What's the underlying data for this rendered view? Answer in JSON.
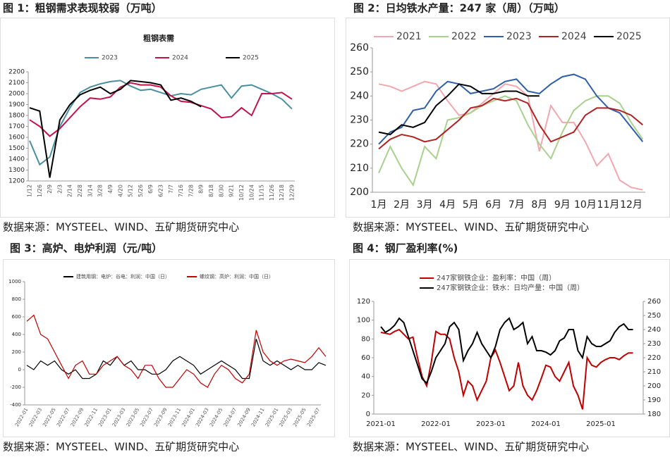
{
  "chart_data": [
    {
      "type": "line",
      "figure_title": "图 1：粗钢需求表现较弱（万吨）",
      "title": "粗钢表需",
      "source": "数据来源：MYSTEEL、WIND、五矿期货研究中心",
      "categories": [
        "1/12",
        "1/26",
        "2/9",
        "2/3",
        "2/14",
        "2/28",
        "3/14",
        "3/28",
        "4/9",
        "4/20",
        "5/12",
        "5/26",
        "6/9",
        "6/23",
        "7/7",
        "7/16",
        "7/28",
        "8/9",
        "8/18",
        "8/30",
        "9/21",
        "10/12",
        "10/24",
        "11/15",
        "11/26",
        "12/18",
        "12/29"
      ],
      "ylim": [
        1200,
        2200
      ],
      "yticks": [
        1200,
        1300,
        1400,
        1500,
        1600,
        1700,
        1800,
        1900,
        2000,
        2100,
        2200
      ],
      "series": [
        {
          "name": "2023",
          "color": "#4a8fa0",
          "values": [
            1570,
            1350,
            1420,
            1700,
            1870,
            2010,
            2060,
            2090,
            2110,
            2120,
            2070,
            2030,
            2040,
            2010,
            1980,
            2000,
            1990,
            2040,
            2060,
            2080,
            1960,
            2070,
            2080,
            2040,
            2000,
            1950,
            1860
          ]
        },
        {
          "name": "2024",
          "color": "#c0144c",
          "values": [
            1760,
            1700,
            1610,
            1680,
            1780,
            1880,
            1960,
            1950,
            1970,
            2060,
            2100,
            2080,
            2080,
            2060,
            1980,
            1930,
            1920,
            1890,
            1860,
            1780,
            1790,
            1870,
            1800,
            2000,
            2000,
            2010,
            1950
          ]
        },
        {
          "name": "2025",
          "color": "#000000",
          "values": [
            1870,
            1840,
            1230,
            1760,
            1900,
            1990,
            2030,
            2060,
            2000,
            2040,
            2120,
            2110,
            2100,
            2080,
            1940,
            1960,
            1930,
            1880,
            null,
            null,
            null,
            null,
            null,
            null,
            null,
            null,
            null
          ]
        }
      ]
    },
    {
      "type": "line",
      "figure_title": "图 2：日均铁水产量：247 家（周）（万吨）",
      "source": "数据来源：MYSTEEL、WIND、五矿期货研究中心",
      "categories": [
        "1月",
        null,
        "2月",
        null,
        "3月",
        null,
        "4月",
        null,
        "5月",
        null,
        "6月",
        null,
        "7月",
        null,
        "8月",
        null,
        "9月",
        null,
        "10月",
        null,
        "11月",
        null,
        "12月",
        null
      ],
      "ylim": [
        200,
        260
      ],
      "yticks": [
        200,
        210,
        220,
        230,
        240,
        250,
        260
      ],
      "series": [
        {
          "name": "2021",
          "color": "#f4a6b0",
          "values": [
            245,
            244,
            242,
            244,
            246,
            245,
            238,
            232,
            233,
            237,
            241,
            245,
            244,
            240,
            217,
            236,
            229,
            229,
            221,
            211,
            216,
            205,
            202,
            201
          ]
        },
        {
          "name": "2022",
          "color": "#a9d18e",
          "values": [
            208,
            219,
            210,
            203,
            219,
            214,
            230,
            231,
            233,
            236,
            238,
            240,
            238,
            228,
            220,
            214,
            225,
            234,
            238,
            240,
            240,
            237,
            229,
            222
          ]
        },
        {
          "name": "2023",
          "color": "#2e5fa8",
          "values": [
            220,
            225,
            227,
            234,
            235,
            242,
            246,
            245,
            241,
            242,
            243,
            246,
            247,
            242,
            241,
            245,
            248,
            249,
            247,
            240,
            235,
            233,
            227,
            221
          ]
        },
        {
          "name": "2024",
          "color": "#b22222",
          "values": [
            218,
            222,
            224,
            223,
            221,
            222,
            226,
            230,
            235,
            236,
            239,
            238,
            239,
            237,
            228,
            221,
            223,
            225,
            232,
            235,
            235,
            234,
            232,
            228
          ]
        },
        {
          "name": "2025",
          "color": "#000000",
          "values": [
            225,
            224,
            228,
            227,
            229,
            236,
            240,
            245,
            244,
            241,
            241,
            242,
            242,
            240,
            240,
            null,
            null,
            null,
            null,
            null,
            null,
            null,
            null,
            null
          ]
        }
      ]
    },
    {
      "type": "line",
      "figure_title": "图 3：高炉、电炉利润（元/吨）",
      "source": "数据来源：MYSTEEL、WIND、五矿期货研究中心",
      "categories": [
        "2022-01",
        null,
        "2022-03",
        null,
        "2022-05",
        null,
        "2022-07",
        null,
        "2022-09",
        null,
        "2022-11",
        null,
        "2023-01",
        null,
        "2023-03",
        null,
        "2023-05",
        null,
        "2023-07",
        null,
        "2023-09",
        null,
        "2023-11",
        null,
        "2024-01",
        null,
        "2024-03",
        null,
        "2024-05",
        null,
        "2024-07",
        null,
        "2024-09",
        null,
        "2024-11",
        null,
        "2025-01",
        null,
        "2025-03",
        null,
        "2025-05",
        null,
        "2025-07",
        null
      ],
      "ylim": [
        -400,
        1000
      ],
      "yticks": [
        -400,
        -200,
        0,
        200,
        400,
        600,
        800,
        1000
      ],
      "series": [
        {
          "name": "建筑用钢：电炉：谷电：利润：中国（日）",
          "color": "#000000",
          "values": [
            50,
            0,
            100,
            50,
            100,
            0,
            -50,
            0,
            -100,
            -100,
            -50,
            100,
            50,
            150,
            50,
            100,
            0,
            0,
            -50,
            -50,
            0,
            100,
            150,
            100,
            50,
            -50,
            0,
            50,
            100,
            50,
            0,
            -100,
            -100,
            350,
            100,
            50,
            100,
            50,
            0,
            50,
            0,
            0,
            80,
            50
          ]
        },
        {
          "name": "螺纹钢：高炉：利润：中国（日）",
          "color": "#c00000",
          "values": [
            550,
            620,
            400,
            350,
            200,
            50,
            -100,
            50,
            100,
            -50,
            -50,
            50,
            100,
            150,
            50,
            0,
            -100,
            50,
            50,
            -100,
            -200,
            -200,
            -100,
            0,
            -50,
            -150,
            -200,
            -50,
            50,
            0,
            -100,
            -150,
            -50,
            450,
            200,
            100,
            50,
            100,
            120,
            100,
            80,
            150,
            250,
            150
          ]
        }
      ]
    },
    {
      "type": "line",
      "figure_title": "图 4：钢厂盈利率(%)",
      "source": "数据来源：MYSTEEL、WIND、五矿期货研究中心",
      "categories": [
        "2021-01",
        null,
        null,
        null,
        null,
        null,
        null,
        null,
        null,
        null,
        null,
        null,
        "2022-01",
        null,
        null,
        null,
        null,
        null,
        null,
        null,
        null,
        null,
        null,
        null,
        "2023-01",
        null,
        null,
        null,
        null,
        null,
        null,
        null,
        null,
        null,
        null,
        null,
        "2024-01",
        null,
        null,
        null,
        null,
        null,
        null,
        null,
        null,
        null,
        null,
        null,
        "2025-01",
        null,
        null,
        null,
        null,
        null,
        null,
        null
      ],
      "ylim": [
        0,
        120
      ],
      "yticks": [
        0,
        20,
        40,
        60,
        80,
        100,
        120
      ],
      "y2lim": [
        180,
        260
      ],
      "y2ticks": [
        180,
        190,
        200,
        210,
        220,
        230,
        240,
        250,
        260
      ],
      "series": [
        {
          "name": "247家钢铁企业：盈利率：中国（周）",
          "color": "#c00000",
          "values": [
            87,
            86,
            85,
            88,
            90,
            85,
            80,
            82,
            60,
            40,
            30,
            55,
            88,
            85,
            85,
            80,
            60,
            45,
            20,
            35,
            30,
            15,
            25,
            35,
            60,
            68,
            55,
            40,
            25,
            30,
            55,
            30,
            20,
            15,
            25,
            38,
            52,
            50,
            40,
            35,
            45,
            55,
            30,
            20,
            5,
            60,
            52,
            50,
            55,
            58,
            60,
            60,
            58,
            62,
            65,
            65
          ]
        },
        {
          "name": "247家钢铁企业：铁水：日均产量：中国（周）",
          "color": "#000000",
          "axis": "y2",
          "values": [
            242,
            238,
            240,
            243,
            248,
            245,
            235,
            225,
            215,
            205,
            202,
            210,
            220,
            225,
            230,
            242,
            245,
            240,
            218,
            225,
            230,
            238,
            230,
            225,
            220,
            228,
            240,
            245,
            248,
            240,
            242,
            245,
            230,
            235,
            225,
            225,
            224,
            222,
            225,
            232,
            234,
            240,
            240,
            225,
            220,
            235,
            230,
            228,
            228,
            230,
            232,
            238,
            242,
            244,
            240,
            240
          ]
        }
      ]
    }
  ]
}
